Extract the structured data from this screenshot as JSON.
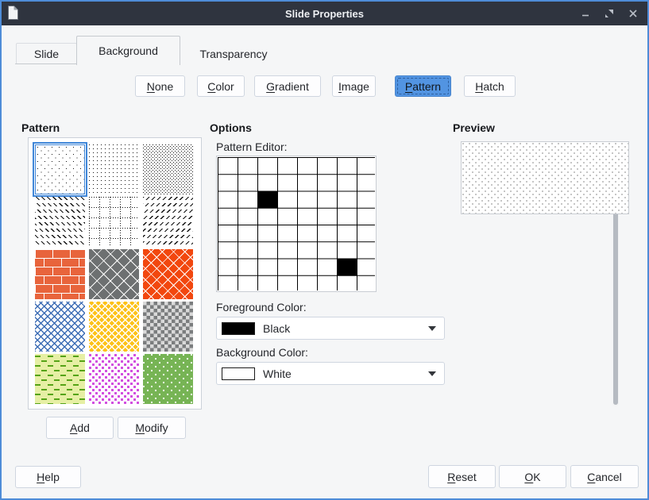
{
  "window": {
    "title": "Slide Properties",
    "controls": {
      "minimize": "minimize",
      "maximize": "maximize",
      "close": "close"
    },
    "accent_color": "#5294e2",
    "titlebar_color": "#2f343f"
  },
  "tabs": [
    {
      "label": "Slide",
      "active": false
    },
    {
      "label": "Background",
      "active": true
    },
    {
      "label": "Transparency",
      "active": false
    }
  ],
  "fill_types": {
    "options": [
      "None",
      "Color",
      "Gradient",
      "Image",
      "Pattern",
      "Hatch"
    ],
    "selected": "Pattern",
    "selected_color": "#5294e2"
  },
  "pattern_section": {
    "heading": "Pattern",
    "selected_index": 0,
    "patterns": [
      "dots-sparse",
      "dots-medium",
      "dots-dense",
      "diagonal-dashes-left",
      "dotted-grid",
      "diagonal-dashes-right",
      "bricks-orange",
      "shingles-gray",
      "scales-red",
      "zigzag-blue",
      "herringbone-gold",
      "checker-gray",
      "dashes-green",
      "squares-magenta",
      "chevrons-green"
    ],
    "buttons": {
      "add": "Add",
      "modify": "Modify"
    }
  },
  "options_section": {
    "heading": "Options",
    "editor_label": "Pattern Editor:",
    "editor_grid": {
      "rows": 8,
      "cols": 8,
      "filled_cells": [
        [
          2,
          2
        ],
        [
          6,
          6
        ]
      ],
      "foreground": "#000000",
      "background": "#ffffff"
    },
    "foreground_color": {
      "label": "Foreground Color:",
      "value": "Black",
      "swatch": "#000000"
    },
    "background_color": {
      "label": "Background Color:",
      "value": "White",
      "swatch": "#ffffff"
    }
  },
  "preview_section": {
    "heading": "Preview"
  },
  "footer": {
    "help": "Help",
    "reset": "Reset",
    "ok": "OK",
    "cancel": "Cancel"
  }
}
